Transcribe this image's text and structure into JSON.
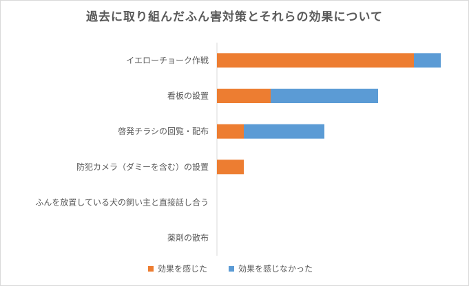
{
  "chart_data": {
    "type": "bar",
    "orientation": "horizontal",
    "stacked": true,
    "title": "過去に取り組んだふん害対策とそれらの効果について",
    "categories": [
      "イエローチョーク作戦",
      "看板の設置",
      "啓発チラシの回覧・配布",
      "防犯カメラ（ダミーを含む）の設置",
      "ふんを放置している犬の飼い主と直接話し合う",
      "薬剤の散布"
    ],
    "series": [
      {
        "name": "効果を感じた",
        "color": "#ed7d31",
        "values": [
          22,
          6,
          3,
          3,
          0,
          0
        ]
      },
      {
        "name": "効果を感じなかった",
        "color": "#5b9bd5",
        "values": [
          3,
          12,
          9,
          0,
          0,
          0
        ]
      }
    ],
    "xlim": [
      0,
      25
    ],
    "grid": false,
    "legend_position": "bottom"
  }
}
